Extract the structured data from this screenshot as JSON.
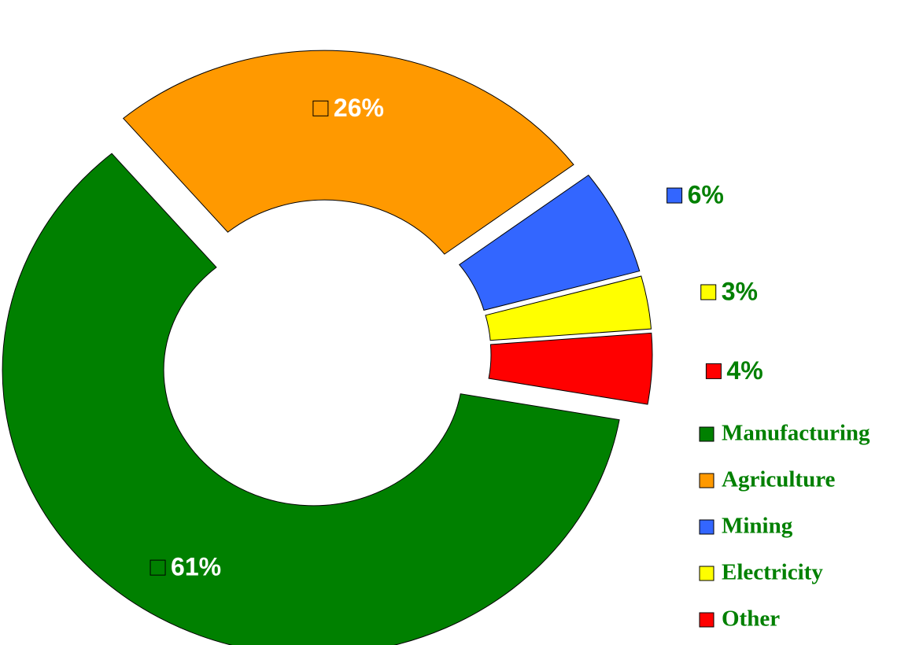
{
  "chart_data": {
    "type": "donut",
    "categories": [
      "Manufacturing",
      "Agriculture",
      "Mining",
      "Electricity",
      "Other"
    ],
    "values": [
      61,
      26,
      6,
      3,
      4
    ],
    "value_labels": [
      "61%",
      "26%",
      "6%",
      "3%",
      "4%"
    ],
    "colors": [
      "#008000",
      "#ff9900",
      "#3366ff",
      "#ffff00",
      "#ff0000"
    ],
    "legend": "bottom-right"
  }
}
